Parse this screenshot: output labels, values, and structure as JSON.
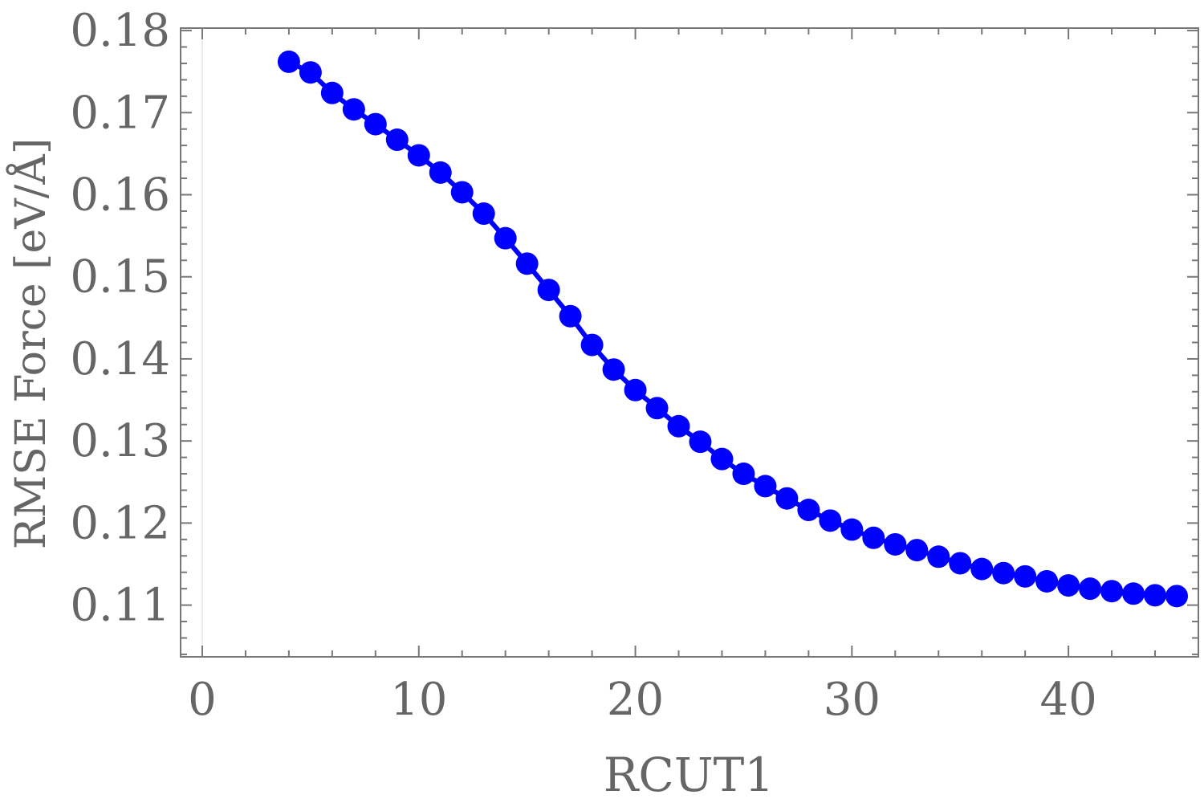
{
  "chart_data": {
    "type": "line",
    "title": "",
    "xlabel": "RCUT1",
    "ylabel": "RMSE Force [eV/Å]",
    "xlim": [
      -1,
      46
    ],
    "ylim": [
      0.1037,
      0.1803
    ],
    "xticks": [
      0,
      10,
      20,
      30,
      40
    ],
    "yticks": [
      0.11,
      0.12,
      0.13,
      0.14,
      0.15,
      0.16,
      0.17,
      0.18
    ],
    "xtick_labels": [
      "0",
      "10",
      "20",
      "30",
      "40"
    ],
    "ytick_labels": [
      "0.11",
      "0.12",
      "0.13",
      "0.14",
      "0.15",
      "0.16",
      "0.17",
      "0.18"
    ],
    "grid": false,
    "frame": true,
    "series": [
      {
        "color": "#0000ff",
        "marker": "circle",
        "x": [
          4,
          5,
          6,
          7,
          8,
          9,
          10,
          11,
          12,
          13,
          14,
          15,
          16,
          17,
          18,
          19,
          20,
          21,
          22,
          23,
          24,
          25,
          26,
          27,
          28,
          29,
          30,
          31,
          32,
          33,
          34,
          35,
          36,
          37,
          38,
          39,
          40,
          41,
          42,
          43,
          44,
          45
        ],
        "y": [
          0.1762,
          0.1749,
          0.1724,
          0.1704,
          0.1686,
          0.1667,
          0.1648,
          0.1627,
          0.1603,
          0.1577,
          0.1547,
          0.1516,
          0.1484,
          0.1452,
          0.1417,
          0.1387,
          0.1362,
          0.134,
          0.1318,
          0.1299,
          0.1278,
          0.126,
          0.1245,
          0.123,
          0.1216,
          0.1203,
          0.1192,
          0.1182,
          0.1174,
          0.1167,
          0.1159,
          0.1151,
          0.1144,
          0.1139,
          0.1135,
          0.1129,
          0.1124,
          0.112,
          0.1117,
          0.1114,
          0.1112,
          0.1111
        ]
      }
    ]
  }
}
